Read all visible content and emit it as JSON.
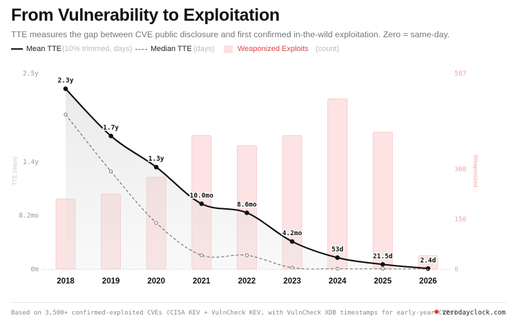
{
  "header": {
    "title": "From Vulnerability to Exploitation",
    "subtitle": "TTE measures the gap between CVE public disclosure and first confirmed in-the-wild exploitation. Zero = same-day."
  },
  "legend": {
    "mean_label": "Mean TTE",
    "mean_hint": "(10% trimmed, days)",
    "median_label": "Median TTE",
    "median_hint": "(days)",
    "bars_label": "Weaponized Exploits",
    "bars_hint": "(count)"
  },
  "colors": {
    "mean_line": "#111111",
    "median_line": "#6a6a6a",
    "bars_fill": "#fde3e3",
    "bars_stroke": "#f6c4c4",
    "right_axis": "#f4a3a3",
    "accent_red": "#e53935"
  },
  "chart_data": {
    "type": "line",
    "categories": [
      "2018",
      "2019",
      "2020",
      "2021",
      "2022",
      "2023",
      "2024",
      "2025",
      "2026"
    ],
    "series": [
      {
        "name": "Mean TTE",
        "axis": "left",
        "unit": "days",
        "values": [
          840,
          620,
          475,
          304,
          262,
          128,
          53,
          21.5,
          2.4
        ],
        "data_labels": [
          "2.3y",
          "1.7y",
          "1.3y",
          "10.0mo",
          "8.6mo",
          "4.2mo",
          "53d",
          "21.5d",
          "2.4d"
        ]
      },
      {
        "name": "Median TTE",
        "axis": "left",
        "unit": "days",
        "values": [
          720,
          455,
          215,
          64,
          64,
          6,
          1,
          0.5,
          0
        ]
      },
      {
        "name": "Weaponized Exploits",
        "axis": "right",
        "type": "bar",
        "unit": "count",
        "values": [
          210,
          225,
          275,
          400,
          370,
          400,
          510,
          410,
          40
        ]
      }
    ],
    "left_axis": {
      "label": "TTE (days)",
      "ylim": [
        0,
        913
      ],
      "ticks": [
        {
          "value": 0,
          "label": "0m"
        },
        {
          "value": 250,
          "label": "8.2mo"
        },
        {
          "value": 500,
          "label": "1.4y"
        },
        {
          "value": 913,
          "label": "2.5y"
        }
      ]
    },
    "right_axis": {
      "label": "Weaponized",
      "ylim": [
        0,
        587
      ],
      "ticks": [
        {
          "value": 0,
          "label": "0"
        },
        {
          "value": 150,
          "label": "150"
        },
        {
          "value": 300,
          "label": "300"
        },
        {
          "value": 587,
          "label": "587"
        }
      ]
    },
    "grid": false,
    "legend_position": "top-left"
  },
  "footer": {
    "source": "Based on 3,500+ confirmed-exploited CVEs (CISA KEV + VulnCheck KEV, with VulnCheck XDB timestamps for early-year CVEs)",
    "brand": "zerodayclock.com"
  }
}
